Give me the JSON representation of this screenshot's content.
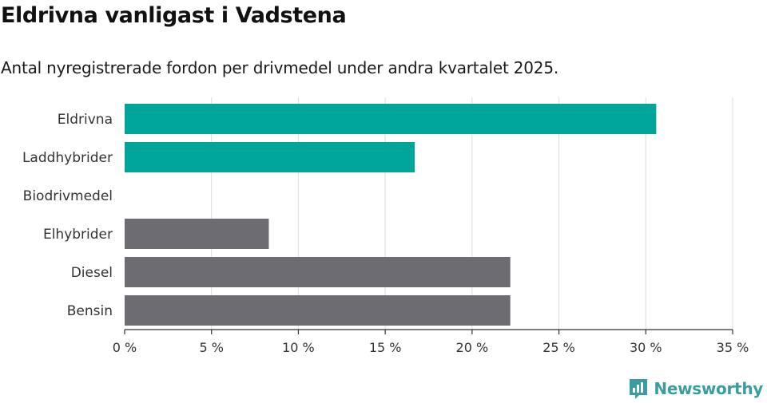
{
  "header": {
    "title": "Eldrivna vanligast i Vadstena",
    "subtitle": "Antal nyregistrerade fordon per drivmedel under andra kvartalet 2025."
  },
  "brand": {
    "name": "Newsworthy"
  },
  "colors": {
    "highlight": "#00a59a",
    "other": "#6d6c73",
    "grid": "#dddddd",
    "brand": "#3a9e9e"
  },
  "chart_data": {
    "type": "bar",
    "orientation": "horizontal",
    "categories": [
      "Eldrivna",
      "Laddhybrider",
      "Biodrivmedel",
      "Elhybrider",
      "Diesel",
      "Bensin"
    ],
    "values": [
      30.6,
      16.7,
      0,
      8.3,
      22.2,
      22.2
    ],
    "highlighted": [
      true,
      true,
      false,
      false,
      false,
      false
    ],
    "xlim": [
      0,
      35
    ],
    "xticks": [
      0,
      5,
      10,
      15,
      20,
      25,
      30,
      35
    ],
    "xtick_labels": [
      "0 %",
      "5 %",
      "10 %",
      "15 %",
      "20 %",
      "25 %",
      "30 %",
      "35 %"
    ],
    "grid": "vertical"
  }
}
